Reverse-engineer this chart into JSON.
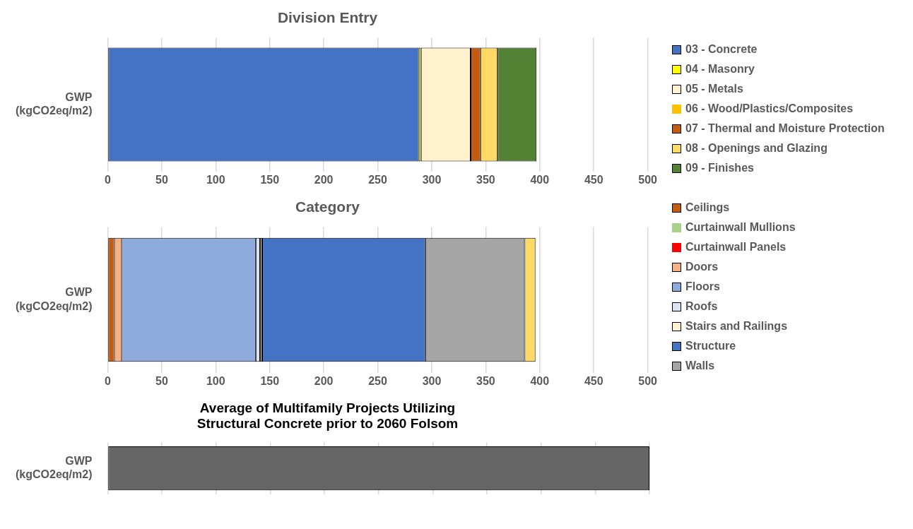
{
  "chart_data": [
    {
      "type": "bar",
      "title": "Division Entry",
      "orientation": "horizontal",
      "stacked": true,
      "categories": [
        "GWP (kgCO2eq/m2)"
      ],
      "xlim": [
        0,
        500
      ],
      "xticks": [
        0,
        50,
        100,
        150,
        200,
        250,
        300,
        350,
        400,
        450,
        500
      ],
      "grid": "x",
      "legend": "right",
      "series": [
        {
          "name": "03 - Concrete",
          "color": "#4472c4",
          "values": [
            288
          ]
        },
        {
          "name": "04 - Masonry",
          "color": "#ffff00",
          "values": [
            2
          ]
        },
        {
          "name": "05 - Metals",
          "color": "#fff2cc",
          "values": [
            46
          ]
        },
        {
          "name": "06 - Wood/Plastics/Composites",
          "color": "#ffc000",
          "values": [
            0
          ]
        },
        {
          "name": "07 - Thermal and Moisture Protection",
          "color": "#c55a11",
          "values": [
            9
          ]
        },
        {
          "name": "08 - Openings and Glazing",
          "color": "#ffd966",
          "values": [
            16
          ]
        },
        {
          "name": "09 - Finishes",
          "color": "#548235",
          "values": [
            36
          ]
        }
      ]
    },
    {
      "type": "bar",
      "title": "Category",
      "orientation": "horizontal",
      "stacked": true,
      "categories": [
        "GWP (kgCO2eq/m2)"
      ],
      "xlim": [
        0,
        500
      ],
      "xticks": [
        0,
        50,
        100,
        150,
        200,
        250,
        300,
        350,
        400,
        450,
        500
      ],
      "grid": "x",
      "legend": "right",
      "series": [
        {
          "name": "Ceilings",
          "color": "#c55a11",
          "values": [
            6
          ]
        },
        {
          "name": "Curtainwall Mullions",
          "color": "#a9d18e",
          "values": [
            0
          ]
        },
        {
          "name": "Curtainwall Panels",
          "color": "#ff0000",
          "values": [
            0
          ]
        },
        {
          "name": "Doors",
          "color": "#f4b183",
          "values": [
            7
          ]
        },
        {
          "name": "Floors",
          "color": "#8faadc",
          "values": [
            124
          ]
        },
        {
          "name": "Roofs",
          "color": "#dae3f3",
          "values": [
            4
          ]
        },
        {
          "name": "Stairs and Railings",
          "color": "#fff2cc",
          "values": [
            2
          ]
        },
        {
          "name": "Structure",
          "color": "#4472c4",
          "values": [
            151
          ]
        },
        {
          "name": "Walls",
          "color": "#a5a5a5",
          "values": [
            92
          ]
        },
        {
          "color": "#ffd966",
          "values": [
            10
          ]
        }
      ]
    },
    {
      "type": "bar",
      "title": "Average of Multifamily Projects Utilizing Structural Concrete prior to 2060 Folsom",
      "orientation": "horizontal",
      "stacked": true,
      "categories": [
        "GWP (kgCO2eq/m2)"
      ],
      "xlim": [
        0,
        500
      ],
      "xticks": [
        0,
        50,
        100,
        150,
        200,
        250,
        300,
        350,
        400,
        450,
        500
      ],
      "grid": "x",
      "tick_labels": "y",
      "series": [
        {
          "color": "#666666",
          "values": [
            500
          ]
        }
      ]
    }
  ]
}
